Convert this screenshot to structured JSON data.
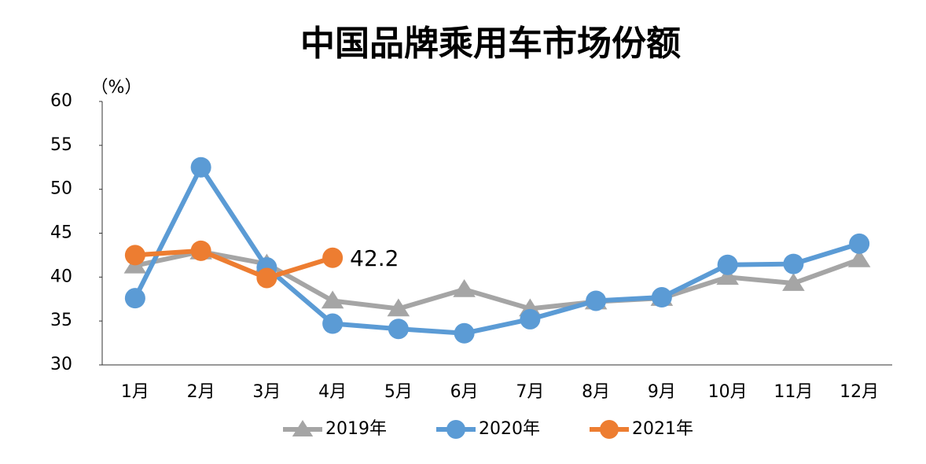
{
  "chart_data": {
    "type": "line",
    "title": "中国品牌乘用车市场份额",
    "y_label": "（%）",
    "categories": [
      "1月",
      "2月",
      "3月",
      "4月",
      "5月",
      "6月",
      "7月",
      "8月",
      "9月",
      "10月",
      "11月",
      "12月"
    ],
    "series": [
      {
        "name": "2019年",
        "color": "#a5a5a5",
        "marker": "triangle",
        "values": [
          41.3,
          42.9,
          41.5,
          37.3,
          36.4,
          38.6,
          36.4,
          37.2,
          37.6,
          40.0,
          39.3,
          42.0
        ]
      },
      {
        "name": "2020年",
        "color": "#5b9bd5",
        "marker": "circle",
        "values": [
          37.6,
          52.5,
          41.1,
          34.7,
          34.1,
          33.6,
          35.2,
          37.3,
          37.7,
          41.4,
          41.5,
          43.8
        ]
      },
      {
        "name": "2021年",
        "color": "#ed7d31",
        "marker": "circle",
        "values": [
          42.5,
          43.0,
          39.9,
          42.2,
          null,
          null,
          null,
          null,
          null,
          null,
          null,
          null
        ]
      }
    ],
    "ylim": [
      30,
      60
    ],
    "yticks": [
      30,
      35,
      40,
      45,
      50,
      55,
      60
    ],
    "grid": false,
    "legend": "bottom"
  }
}
